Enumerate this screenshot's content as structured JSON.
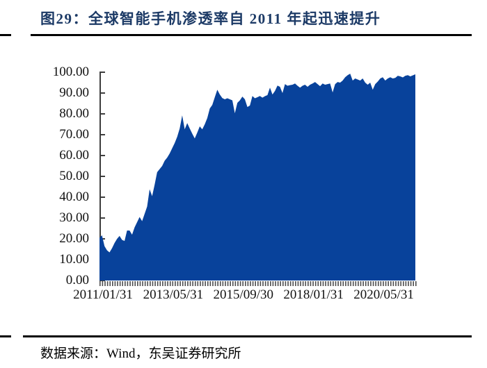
{
  "page": {
    "title": "图29：全球智能手机渗透率自 2011 年起迅速提升",
    "footer": "数据来源：Wind，东吴证券研究所"
  },
  "colors": {
    "area_fill": "#08429b",
    "title_color": "#1c3a66",
    "rule_color": "#000000",
    "axis_color": "#3d3d3d",
    "tick_color": "#4a4a4a"
  },
  "chart_data": {
    "type": "area",
    "title": "全球智能手机渗透率自 2011 年起迅速提升",
    "series_name": "全球智能手机渗透率",
    "unit": "%",
    "frequency": "monthly",
    "x_start": "2011/01/31",
    "x_end": "2021/07/31",
    "ylim": [
      0,
      100
    ],
    "grid": false,
    "legend": "none",
    "y_tick_labels": [
      "100.00",
      "90.00",
      "80.00",
      "70.00",
      "60.00",
      "50.00",
      "40.00",
      "30.00",
      "20.00",
      "10.00",
      "0.00"
    ],
    "x_tick_labels": [
      "2011/01/31",
      "2013/05/31",
      "2015/09/30",
      "2018/01/31",
      "2020/05/31"
    ],
    "x_tick_month_index": [
      0,
      28,
      56,
      84,
      112
    ],
    "values": [
      20.5,
      21.7,
      16.5,
      14.5,
      13.5,
      15.5,
      18.0,
      20.0,
      21.4,
      19.5,
      19.0,
      24.0,
      24.0,
      22.0,
      25.5,
      28.0,
      30.5,
      28.5,
      32.0,
      35.5,
      43.8,
      40.5,
      46.0,
      52.0,
      53.5,
      55.0,
      57.5,
      59.0,
      61.0,
      63.5,
      66.0,
      69.0,
      73.0,
      79.3,
      72.6,
      75.6,
      73.0,
      70.5,
      68.2,
      71.0,
      74.0,
      72.6,
      75.0,
      78.0,
      82.6,
      84.3,
      88.0,
      91.6,
      89.3,
      87.6,
      87.0,
      87.5,
      87.0,
      86.5,
      80.3,
      85.3,
      86.5,
      88.3,
      87.0,
      83.3,
      84.0,
      88.6,
      87.5,
      88.0,
      88.6,
      87.8,
      88.5,
      89.0,
      92.6,
      89.3,
      91.0,
      93.6,
      93.0,
      90.0,
      94.3,
      93.5,
      93.8,
      94.0,
      94.6,
      93.5,
      92.6,
      93.5,
      94.0,
      93.0,
      94.0,
      94.6,
      95.3,
      94.3,
      93.3,
      94.6,
      94.0,
      94.3,
      94.6,
      90.3,
      94.3,
      95.3,
      95.0,
      96.0,
      97.6,
      98.6,
      99.3,
      96.0,
      97.0,
      96.5,
      96.0,
      97.0,
      95.0,
      94.0,
      95.0,
      91.6,
      94.3,
      95.5,
      97.0,
      97.6,
      96.0,
      97.0,
      97.6,
      97.0,
      97.3,
      98.3,
      98.0,
      97.5,
      98.3,
      98.6,
      98.0,
      98.5,
      99.0
    ]
  }
}
